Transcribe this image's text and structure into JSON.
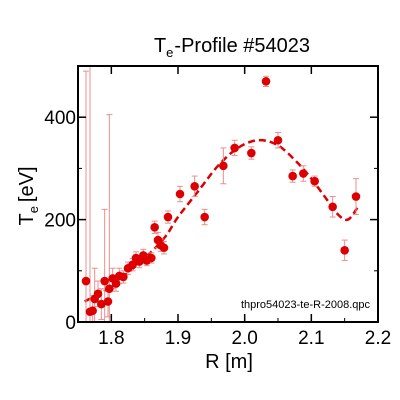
{
  "chart_data": {
    "type": "scatter",
    "title": "Profile #54023",
    "title_prefix": "T",
    "title_sub": "e",
    "xlabel": "R [m]",
    "ylabel": "[eV]",
    "ylabel_prefix": "T",
    "ylabel_sub": "e",
    "annotation": "thpro54023-te-R-2008.qpc",
    "xlim": [
      1.75,
      2.2
    ],
    "ylim": [
      0,
      500
    ],
    "xticks": [
      1.8,
      1.9,
      2.0,
      2.1,
      2.2
    ],
    "xtick_labels": [
      "1.8",
      "1.9",
      "2.0",
      "2.1",
      "2.2"
    ],
    "yticks": [
      0,
      200,
      400
    ],
    "ytick_labels": [
      "0",
      "200",
      "400"
    ],
    "grid": false,
    "colors": {
      "points": "#dd0000",
      "errorbars": "#e89090",
      "fit": "#dd0000"
    },
    "series": [
      {
        "kind": "measurements",
        "points": [
          {
            "x": 1.762,
            "y": 80,
            "err": 410
          },
          {
            "x": 1.768,
            "y": 20,
            "err": 480
          },
          {
            "x": 1.772,
            "y": 22,
            "err": 30
          },
          {
            "x": 1.775,
            "y": 45,
            "err": 60
          },
          {
            "x": 1.78,
            "y": 55,
            "err": 25
          },
          {
            "x": 1.785,
            "y": 35,
            "err": 30
          },
          {
            "x": 1.79,
            "y": 80,
            "err": 140
          },
          {
            "x": 1.795,
            "y": 40,
            "err": 30
          },
          {
            "x": 1.797,
            "y": 65,
            "err": 340
          },
          {
            "x": 1.802,
            "y": 85,
            "err": 20
          },
          {
            "x": 1.807,
            "y": 75,
            "err": 15
          },
          {
            "x": 1.812,
            "y": 90,
            "err": 15
          },
          {
            "x": 1.818,
            "y": 88,
            "err": 12
          },
          {
            "x": 1.825,
            "y": 105,
            "err": 12
          },
          {
            "x": 1.832,
            "y": 112,
            "err": 12
          },
          {
            "x": 1.837,
            "y": 125,
            "err": 12
          },
          {
            "x": 1.842,
            "y": 118,
            "err": 12
          },
          {
            "x": 1.848,
            "y": 130,
            "err": 12
          },
          {
            "x": 1.853,
            "y": 120,
            "err": 10
          },
          {
            "x": 1.86,
            "y": 125,
            "err": 10
          },
          {
            "x": 1.865,
            "y": 185,
            "err": 12
          },
          {
            "x": 1.87,
            "y": 160,
            "err": 15
          },
          {
            "x": 1.874,
            "y": 150,
            "err": 12
          },
          {
            "x": 1.879,
            "y": 145,
            "err": 12
          },
          {
            "x": 1.885,
            "y": 205,
            "err": 12
          },
          {
            "x": 1.903,
            "y": 250,
            "err": 15
          },
          {
            "x": 1.925,
            "y": 265,
            "err": 20
          },
          {
            "x": 1.94,
            "y": 205,
            "err": 15
          },
          {
            "x": 1.968,
            "y": 305,
            "err": 35
          },
          {
            "x": 1.985,
            "y": 340,
            "err": 15
          },
          {
            "x": 2.01,
            "y": 330,
            "err": 12
          },
          {
            "x": 2.032,
            "y": 470,
            "err": 10
          },
          {
            "x": 2.05,
            "y": 355,
            "err": 15
          },
          {
            "x": 2.072,
            "y": 285,
            "err": 12
          },
          {
            "x": 2.088,
            "y": 290,
            "err": 15
          },
          {
            "x": 2.105,
            "y": 275,
            "err": 10
          },
          {
            "x": 2.132,
            "y": 225,
            "err": 20
          },
          {
            "x": 2.15,
            "y": 140,
            "err": 20
          },
          {
            "x": 2.167,
            "y": 245,
            "err": 35
          }
        ]
      },
      {
        "kind": "fit",
        "style": "dashed",
        "points": [
          {
            "x": 1.76,
            "y": 40
          },
          {
            "x": 1.8,
            "y": 70
          },
          {
            "x": 1.85,
            "y": 125
          },
          {
            "x": 1.88,
            "y": 165
          },
          {
            "x": 1.9,
            "y": 205
          },
          {
            "x": 1.93,
            "y": 255
          },
          {
            "x": 1.96,
            "y": 305
          },
          {
            "x": 1.99,
            "y": 340
          },
          {
            "x": 2.02,
            "y": 355
          },
          {
            "x": 2.05,
            "y": 345
          },
          {
            "x": 2.08,
            "y": 310
          },
          {
            "x": 2.1,
            "y": 280
          },
          {
            "x": 2.12,
            "y": 245
          },
          {
            "x": 2.14,
            "y": 210
          },
          {
            "x": 2.155,
            "y": 200
          },
          {
            "x": 2.17,
            "y": 225
          }
        ]
      }
    ]
  }
}
